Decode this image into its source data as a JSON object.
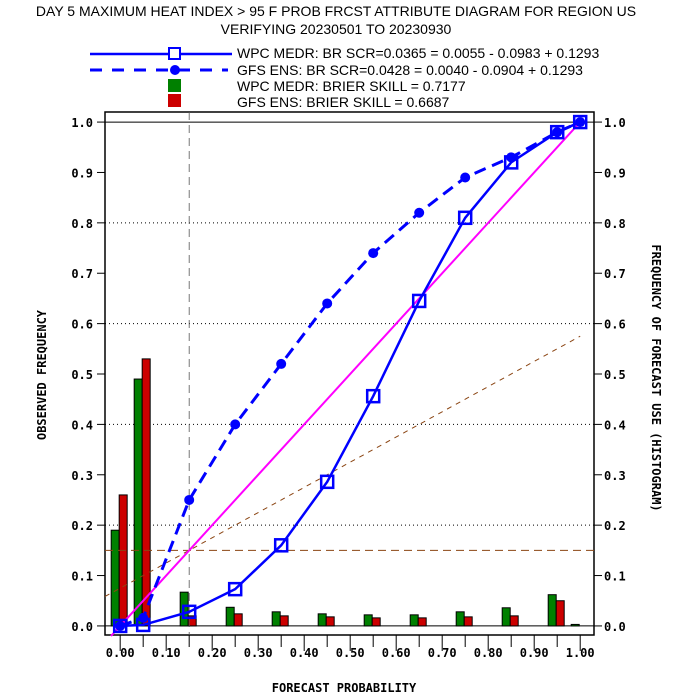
{
  "chart_data": {
    "type": "line",
    "title": "DAY 5 MAXIMUM HEAT INDEX > 95 F PROB FRCST ATTRIBUTE DIAGRAM FOR REGION US",
    "subtitle": "VERIFYING 20230501 TO 20230930",
    "xlabel": "FORECAST PROBABILITY",
    "ylabel": "OBSERVED FREQUENCY",
    "y2label": "FREQUENCY OF FORECAST USE (HISTOGRAM)",
    "xlim": [
      -0.033,
      1.03
    ],
    "ylim": [
      -0.018,
      1.02
    ],
    "xticks": [
      "0.00",
      "0.10",
      "0.20",
      "0.30",
      "0.40",
      "0.50",
      "0.60",
      "0.70",
      "0.80",
      "0.90",
      "1.00"
    ],
    "yticks": [
      "0.0",
      "0.1",
      "0.2",
      "0.3",
      "0.4",
      "0.5",
      "0.6",
      "0.7",
      "0.8",
      "0.9",
      "1.0"
    ],
    "climatology": 0.15,
    "x": [
      0.0,
      0.05,
      0.15,
      0.25,
      0.35,
      0.45,
      0.55,
      0.65,
      0.75,
      0.85,
      0.95,
      1.0
    ],
    "series": [
      {
        "name": "WPC MEDR: BR SCR=0.0365 = 0.0055 - 0.0983 + 0.1293",
        "style": "solid-square",
        "color": "#0000ff",
        "values": [
          0.0,
          0.002,
          0.028,
          0.073,
          0.16,
          0.286,
          0.456,
          0.645,
          0.81,
          0.92,
          0.98,
          1.0
        ]
      },
      {
        "name": "GFS ENS: BR SCR=0.0428 = 0.0040 - 0.0904 + 0.1293",
        "style": "dashed-circle",
        "color": "#0000ff",
        "values": [
          0.0,
          0.016,
          0.25,
          0.4,
          0.52,
          0.64,
          0.74,
          0.82,
          0.89,
          0.93,
          0.98,
          1.0
        ]
      }
    ],
    "histograms": [
      {
        "name": "WPC MEDR:  BRIER SKILL = 0.7177",
        "color": "#008000",
        "values": [
          0.19,
          0.49,
          0.067,
          0.037,
          0.028,
          0.024,
          0.022,
          0.022,
          0.028,
          0.036,
          0.062,
          0.003
        ]
      },
      {
        "name": "GFS ENS:  BRIER SKILL = 0.6687",
        "color": "#cc0000",
        "values": [
          0.26,
          0.53,
          0.02,
          0.024,
          0.02,
          0.018,
          0.016,
          0.016,
          0.018,
          0.02,
          0.05,
          0.0
        ]
      }
    ],
    "reference_lines": {
      "perfect_reliability_color": "#ff00ff",
      "no_skill_color": "#8b4513"
    }
  }
}
